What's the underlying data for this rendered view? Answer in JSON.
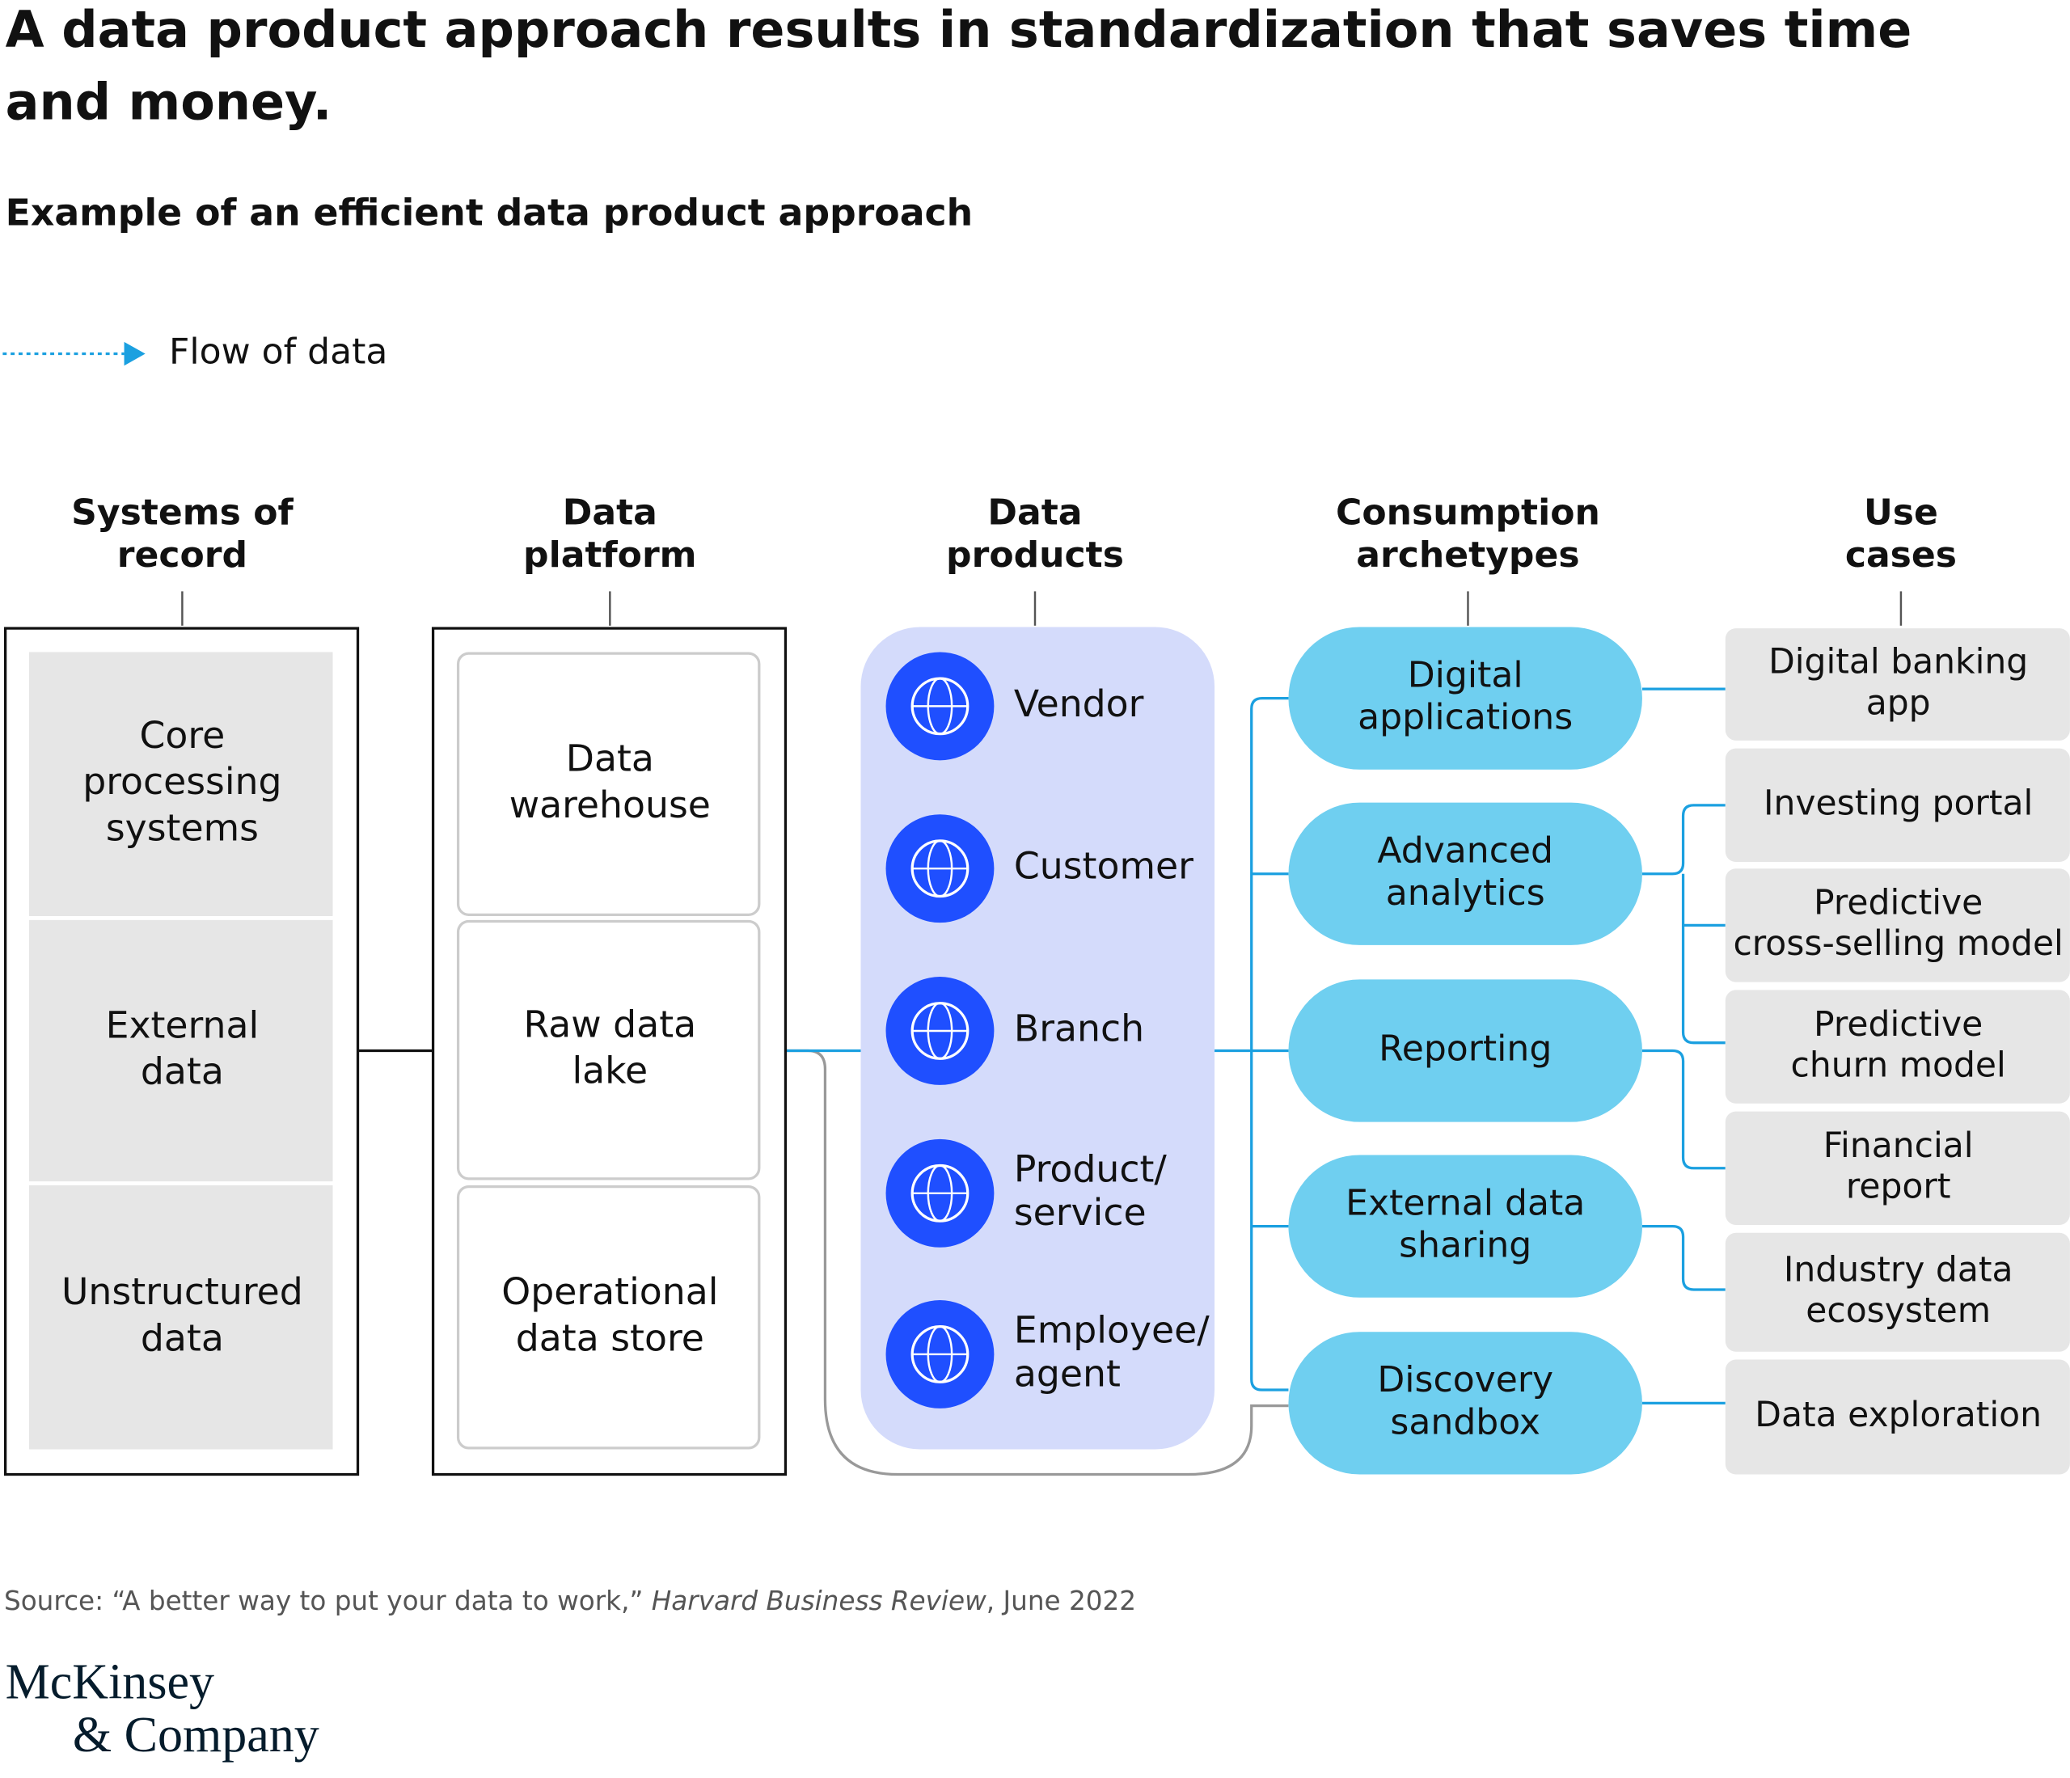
{
  "title": [
    "A data product approach results in standardization that saves time",
    "and money."
  ],
  "subtitle": "Example of an efficient data product approach",
  "legend": {
    "label": "Flow of data"
  },
  "columns": [
    {
      "header": [
        "Systems of",
        "record"
      ],
      "items": [
        [
          "Core",
          "processing",
          "systems"
        ],
        [
          "External",
          "data"
        ],
        [
          "Unstructured",
          "data"
        ]
      ]
    },
    {
      "header": [
        "Data",
        "platform"
      ],
      "items": [
        [
          "Data",
          "warehouse"
        ],
        [
          "Raw data",
          "lake"
        ],
        [
          "Operational",
          "data store"
        ]
      ]
    },
    {
      "header": [
        "Data",
        "products"
      ],
      "items": [
        [
          "Vendor"
        ],
        [
          "Customer"
        ],
        [
          "Branch"
        ],
        [
          "Product/",
          "service"
        ],
        [
          "Employee/",
          "agent"
        ]
      ]
    },
    {
      "header": [
        "Consumption",
        "archetypes"
      ],
      "items": [
        [
          "Digital",
          "applications"
        ],
        [
          "Advanced",
          "analytics"
        ],
        [
          "Reporting"
        ],
        [
          "External data",
          "sharing"
        ],
        [
          "Discovery",
          "sandbox"
        ]
      ]
    },
    {
      "header": [
        "Use",
        "cases"
      ],
      "items": [
        [
          "Digital banking",
          "app"
        ],
        [
          "Investing portal"
        ],
        [
          "Predictive",
          "cross-selling model"
        ],
        [
          "Predictive",
          "churn model"
        ],
        [
          "Financial",
          "report"
        ],
        [
          "Industry data",
          "ecosystem"
        ],
        [
          "Data exploration"
        ]
      ]
    }
  ],
  "source": {
    "prefix": "Source: “A better way to put your data to work,” ",
    "italic": "Harvard Business Review",
    "suffix": ", June 2022"
  },
  "logo": [
    "McKinsey",
    "& Company"
  ]
}
